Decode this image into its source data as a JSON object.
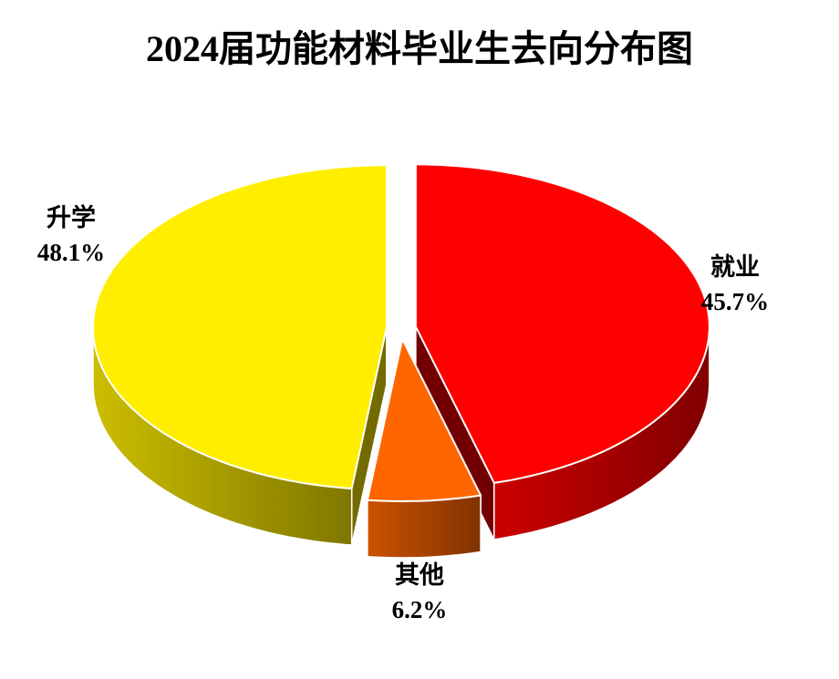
{
  "chart_data": {
    "type": "pie3d",
    "title": "2024届功能材料毕业生去向分布图",
    "categories": [
      "就业",
      "其他",
      "升学"
    ],
    "values": [
      45.7,
      6.2,
      48.1
    ],
    "value_labels": [
      "45.7%",
      "6.2%",
      "48.1%"
    ],
    "colors": [
      "#ff0000",
      "#ff6600",
      "#ffee00"
    ]
  }
}
